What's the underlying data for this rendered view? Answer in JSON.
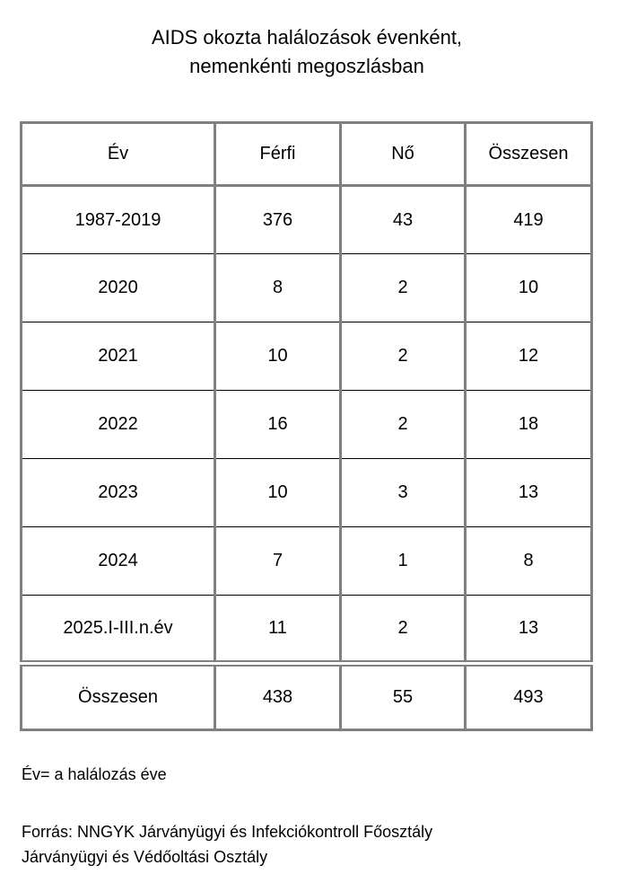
{
  "title": {
    "line1": "AIDS okozta halálozások évenként,",
    "line2": "nemenkénti megoszlásban"
  },
  "table": {
    "headers": [
      "Év",
      "Férfi",
      "Nő",
      "Összesen"
    ],
    "rows": [
      [
        "1987-2019",
        "376",
        "43",
        "419"
      ],
      [
        "2020",
        "8",
        "2",
        "10"
      ],
      [
        "2021",
        "10",
        "2",
        "12"
      ],
      [
        "2022",
        "16",
        "2",
        "18"
      ],
      [
        "2023",
        "10",
        "3",
        "13"
      ],
      [
        "2024",
        "7",
        "1",
        "8"
      ],
      [
        "2025.I-III.n.év",
        "11",
        "2",
        "13"
      ]
    ],
    "total": [
      "Összesen",
      "438",
      "55",
      "493"
    ]
  },
  "footnote": "Év= a halálozás éve",
  "source": {
    "line1": "Forrás: NNGYK Járványügyi és Infekciókontroll Főosztály",
    "line2": "Járványügyi és Védőoltási Osztály"
  },
  "colors": {
    "border_gray": "#808080",
    "row_divider": "#000000",
    "text": "#000000",
    "background": "#ffffff"
  }
}
